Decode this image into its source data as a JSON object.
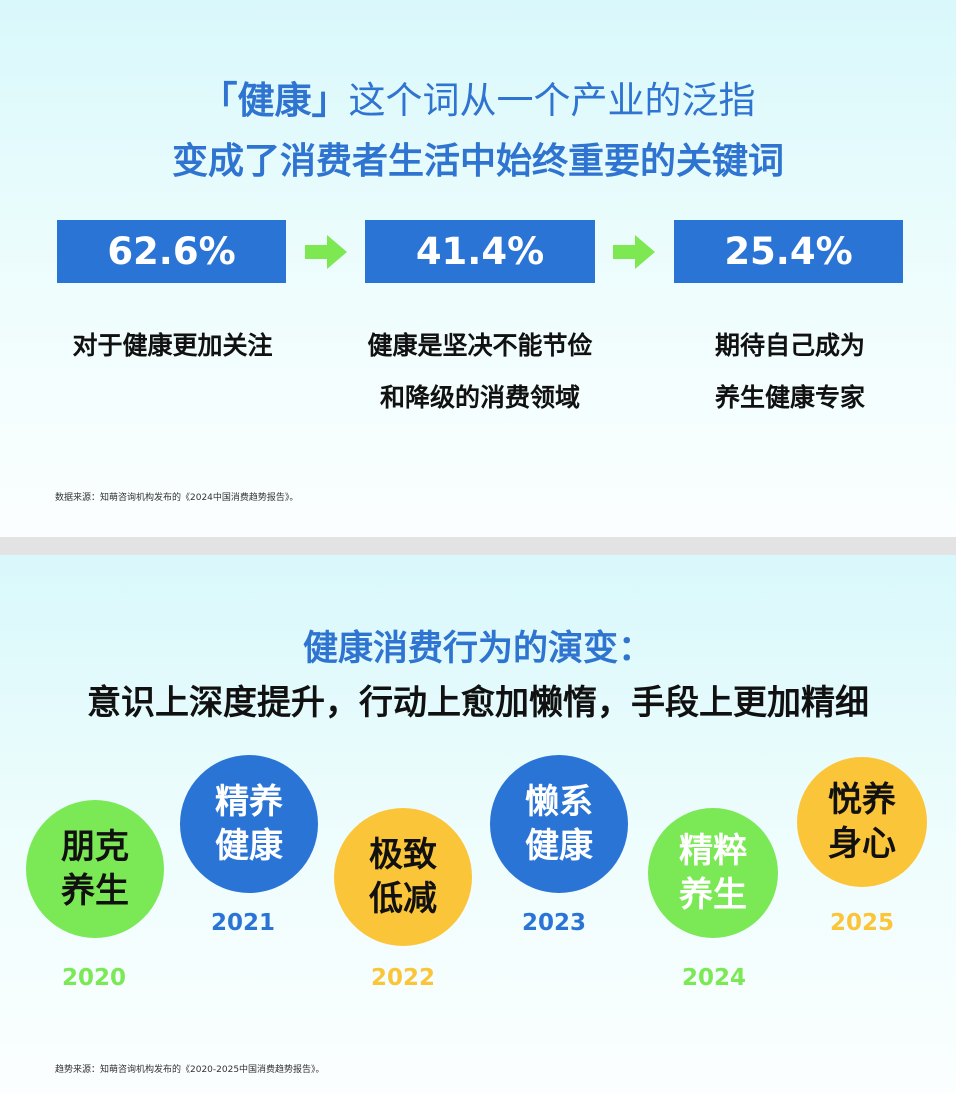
{
  "slide1": {
    "title_line1_accent": "「健康」",
    "title_line1_rest": "这个词从一个产业的泛指",
    "title_line2": "变成了消费者生活中始终重要的关键词",
    "stats": [
      {
        "value": "62.6%",
        "desc_lines": [
          "对于健康更加关注"
        ]
      },
      {
        "value": "41.4%",
        "desc_lines": [
          "健康是坚决不能节俭",
          "和降级的消费领域"
        ]
      },
      {
        "value": "25.4%",
        "desc_lines": [
          "期待自己成为",
          "养生健康专家"
        ]
      }
    ],
    "source": "数据来源：知萌咨询机构发布的《2024中国消费趋势报告》。"
  },
  "slide2": {
    "title_line1": "健康消费行为的演变：",
    "title_line2": "意识上深度提升，行动上愈加懒惰，手段上更加精细",
    "timeline": [
      {
        "year": "2020",
        "lines": [
          "朋克",
          "养生"
        ],
        "color": "#7be856",
        "text_color": "#111111",
        "year_color": "#7be856"
      },
      {
        "year": "2021",
        "lines": [
          "精养",
          "健康"
        ],
        "color": "#2a74d6",
        "text_color": "#ffffff",
        "year_color": "#2a74d6"
      },
      {
        "year": "2022",
        "lines": [
          "极致",
          "低减"
        ],
        "color": "#fbc53a",
        "text_color": "#111111",
        "year_color": "#fbc53a"
      },
      {
        "year": "2023",
        "lines": [
          "懒系",
          "健康"
        ],
        "color": "#2a74d6",
        "text_color": "#ffffff",
        "year_color": "#2a74d6"
      },
      {
        "year": "2024",
        "lines": [
          "精粹",
          "养生"
        ],
        "color": "#7be856",
        "text_color": "#ffffff",
        "year_color": "#7be856"
      },
      {
        "year": "2025",
        "lines": [
          "悦养",
          "身心"
        ],
        "color": "#fbc53a",
        "text_color": "#111111",
        "year_color": "#fbc53a"
      }
    ],
    "source": "趋势来源：知萌咨询机构发布的《2020-2025中国消费趋势报告》。"
  }
}
